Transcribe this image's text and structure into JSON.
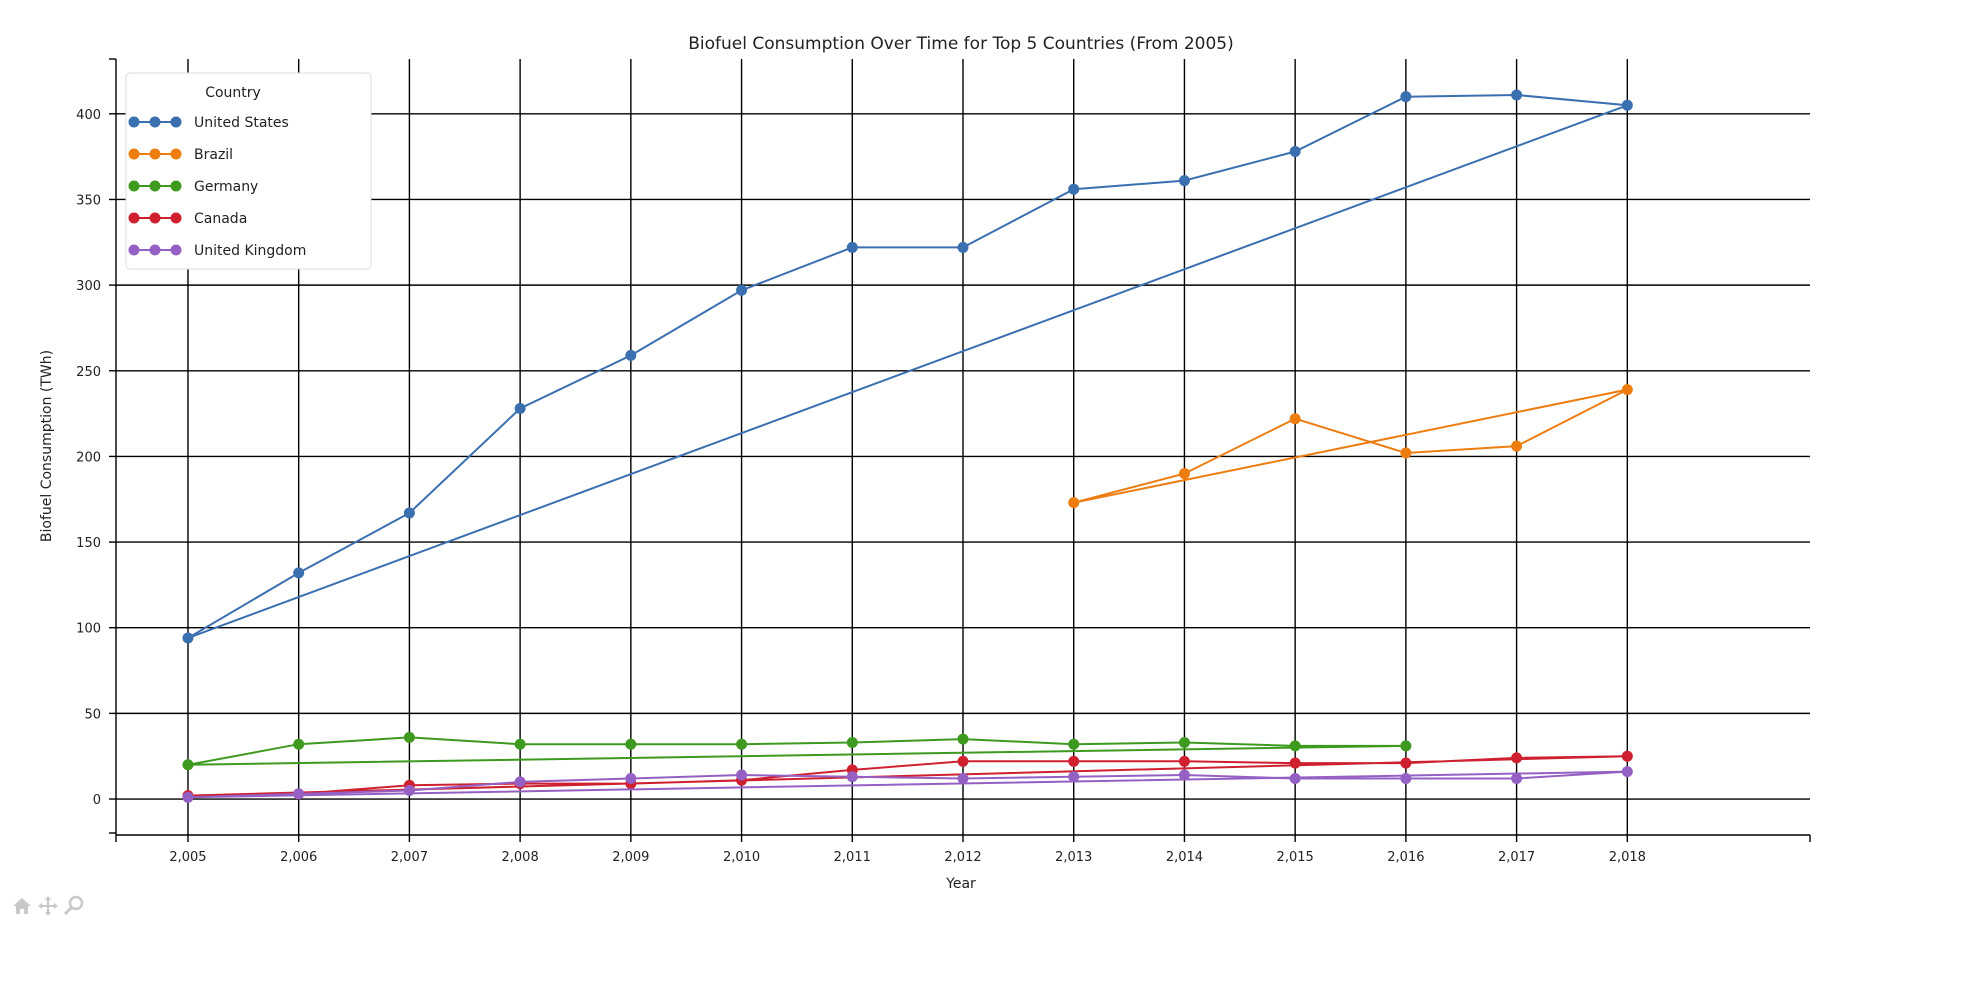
{
  "chart_data": {
    "type": "line",
    "title": "Biofuel Consumption Over Time for Top 5 Countries (From 2005)",
    "xlabel": "Year",
    "ylabel": "Biofuel Consumption (TWh)",
    "xlim": [
      2004.35,
      2019.65
    ],
    "ylim": [
      -21,
      432
    ],
    "x_ticks": [
      2005,
      2006,
      2007,
      2008,
      2009,
      2010,
      2011,
      2012,
      2013,
      2014,
      2015,
      2016,
      2017,
      2018
    ],
    "x_tick_labels": [
      "2,005",
      "2,006",
      "2,007",
      "2,008",
      "2,009",
      "2,010",
      "2,011",
      "2,012",
      "2,013",
      "2,014",
      "2,015",
      "2,016",
      "2,017",
      "2,018"
    ],
    "y_ticks": [
      0,
      50,
      100,
      150,
      200,
      250,
      300,
      350,
      400
    ],
    "y_tick_labels": [
      "0",
      "50",
      "100",
      "150",
      "200",
      "250",
      "300",
      "350",
      "400"
    ],
    "grid": true,
    "legend": {
      "title": "Country",
      "position": "top-left"
    },
    "series": [
      {
        "name": "United States",
        "color": "#3a6fb0",
        "x": [
          2005,
          2006,
          2007,
          2008,
          2009,
          2010,
          2011,
          2012,
          2013,
          2014,
          2015,
          2016,
          2017,
          2018
        ],
        "y": [
          94,
          132,
          167,
          228,
          259,
          297,
          322,
          322,
          356,
          361,
          378,
          410,
          411,
          405
        ],
        "closes_to_first": true
      },
      {
        "name": "Brazil",
        "color": "#ee7d10",
        "x": [
          2013,
          2014,
          2015,
          2016,
          2017,
          2018
        ],
        "y": [
          173,
          190,
          222,
          202,
          206,
          239
        ],
        "closes_to_first": true
      },
      {
        "name": "Germany",
        "color": "#3e9a1f",
        "x": [
          2005,
          2006,
          2007,
          2008,
          2009,
          2010,
          2011,
          2012,
          2013,
          2014,
          2015,
          2016
        ],
        "y": [
          20,
          32,
          36,
          32,
          32,
          32,
          33,
          35,
          32,
          33,
          31,
          31
        ],
        "closes_to_first": true
      },
      {
        "name": "Canada",
        "color": "#cf2030",
        "x": [
          2005,
          2006,
          2007,
          2008,
          2009,
          2010,
          2011,
          2012,
          2013,
          2014,
          2015,
          2016,
          2017,
          2018
        ],
        "y": [
          2,
          3,
          8,
          9,
          9,
          11,
          17,
          22,
          22,
          22,
          21,
          21,
          24,
          25
        ],
        "closes_to_first": true
      },
      {
        "name": "United Kingdom",
        "color": "#9560c4",
        "x": [
          2005,
          2006,
          2007,
          2008,
          2009,
          2010,
          2011,
          2012,
          2013,
          2014,
          2015,
          2016,
          2017,
          2018
        ],
        "y": [
          1,
          3,
          5,
          10,
          12,
          14,
          13,
          12,
          13,
          14,
          12,
          12,
          12,
          16
        ],
        "closes_to_first": true
      }
    ]
  },
  "toolbar": {
    "tools": [
      "home-icon",
      "pan-icon",
      "zoom-icon"
    ],
    "color": "#c8c8c8"
  }
}
